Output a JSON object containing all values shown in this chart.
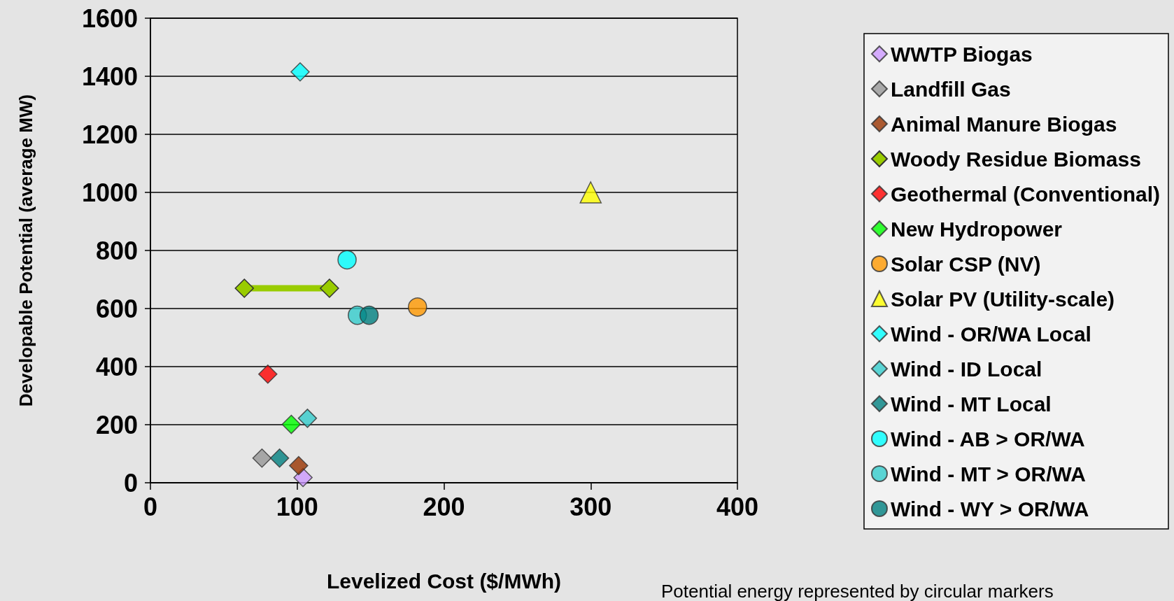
{
  "chart_data": {
    "type": "scatter",
    "xlabel": "Levelized Cost ($/MWh)",
    "ylabel": "Developable Potential (average MW)",
    "xlim": [
      0,
      400
    ],
    "xticks": [
      0,
      100,
      200,
      300,
      400
    ],
    "ylim": [
      0,
      1600
    ],
    "yticks": [
      0,
      200,
      400,
      600,
      800,
      1000,
      1200,
      1400,
      1600
    ],
    "grid": "y",
    "legend": "right",
    "annotations": [
      "Potential energy represented by circular markers"
    ],
    "series": [
      {
        "name": "WWTP Biogas",
        "color": "#cc99ff",
        "marker": "diamond",
        "x": [
          104
        ],
        "values": [
          18
        ]
      },
      {
        "name": "Landfill Gas",
        "color": "#969696",
        "marker": "diamond",
        "x": [
          76
        ],
        "values": [
          85
        ]
      },
      {
        "name": "Animal Manure Biogas",
        "color": "#993300",
        "marker": "diamond",
        "x": [
          101
        ],
        "values": [
          59
        ]
      },
      {
        "name": "Woody Residue Biomass",
        "color": "#99cc00",
        "marker": "diamond",
        "type": "line",
        "x": [
          64,
          122
        ],
        "values": [
          670,
          670
        ]
      },
      {
        "name": "Geothermal (Conventional)",
        "color": "#ff0000",
        "marker": "diamond",
        "x": [
          80
        ],
        "values": [
          374
        ]
      },
      {
        "name": "New Hydropower",
        "color": "#00ff00",
        "marker": "diamond",
        "x": [
          96
        ],
        "values": [
          201
        ]
      },
      {
        "name": "Solar CSP (NV)",
        "color": "#ff9900",
        "marker": "circle",
        "x": [
          182
        ],
        "values": [
          605
        ]
      },
      {
        "name": "Solar PV (Utility-scale)",
        "color": "#ffff00",
        "marker": "triangle",
        "x": [
          300
        ],
        "values": [
          1000
        ]
      },
      {
        "name": "Wind - OR/WA Local",
        "color": "#00ffff",
        "marker": "diamond",
        "x": [
          102
        ],
        "values": [
          1415
        ]
      },
      {
        "name": "Wind - ID Local",
        "color": "#33cccc",
        "marker": "diamond",
        "x": [
          107
        ],
        "values": [
          222
        ]
      },
      {
        "name": "Wind - MT Local",
        "color": "#008080",
        "marker": "diamond",
        "x": [
          88
        ],
        "values": [
          85
        ]
      },
      {
        "name": "Wind - AB > OR/WA",
        "color": "#00ffff",
        "marker": "circle",
        "x": [
          134
        ],
        "values": [
          768
        ]
      },
      {
        "name": "Wind - MT > OR/WA",
        "color": "#33cccc",
        "marker": "circle",
        "x": [
          141
        ],
        "values": [
          577
        ]
      },
      {
        "name": "Wind - WY > OR/WA",
        "color": "#008080",
        "marker": "circle",
        "x": [
          149
        ],
        "values": [
          577
        ]
      }
    ]
  }
}
